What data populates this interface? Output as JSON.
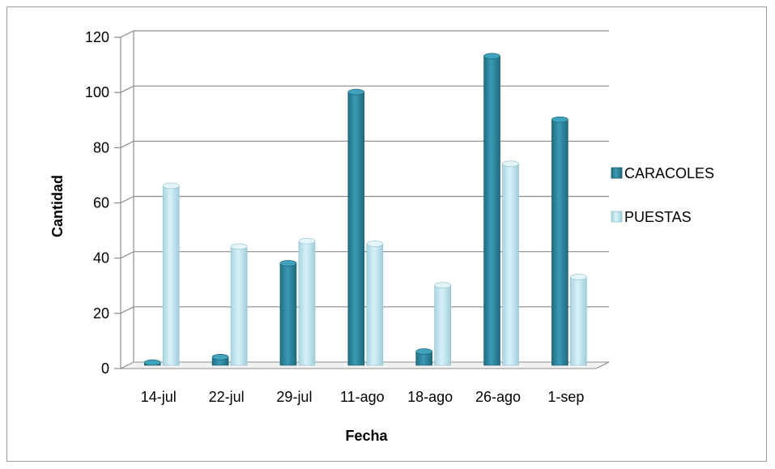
{
  "chart_data": {
    "type": "bar",
    "categories": [
      "14-jul",
      "22-jul",
      "29-jul",
      "11-ago",
      "18-ago",
      "26-ago",
      "1-sep"
    ],
    "series": [
      {
        "name": "CARACOLES",
        "values": [
          1,
          3,
          37,
          99,
          5,
          112,
          89
        ],
        "color": "#2e8ca4"
      },
      {
        "name": "PUESTAS",
        "values": [
          65,
          43,
          45,
          44,
          29,
          73,
          32
        ],
        "color": "#b8e2ec"
      }
    ],
    "xlabel": "Fecha",
    "ylabel": "Cantidad",
    "ylim": [
      0,
      120
    ],
    "yticks": [
      0,
      20,
      40,
      60,
      80,
      100,
      120
    ],
    "grid": true,
    "legend": "right"
  }
}
